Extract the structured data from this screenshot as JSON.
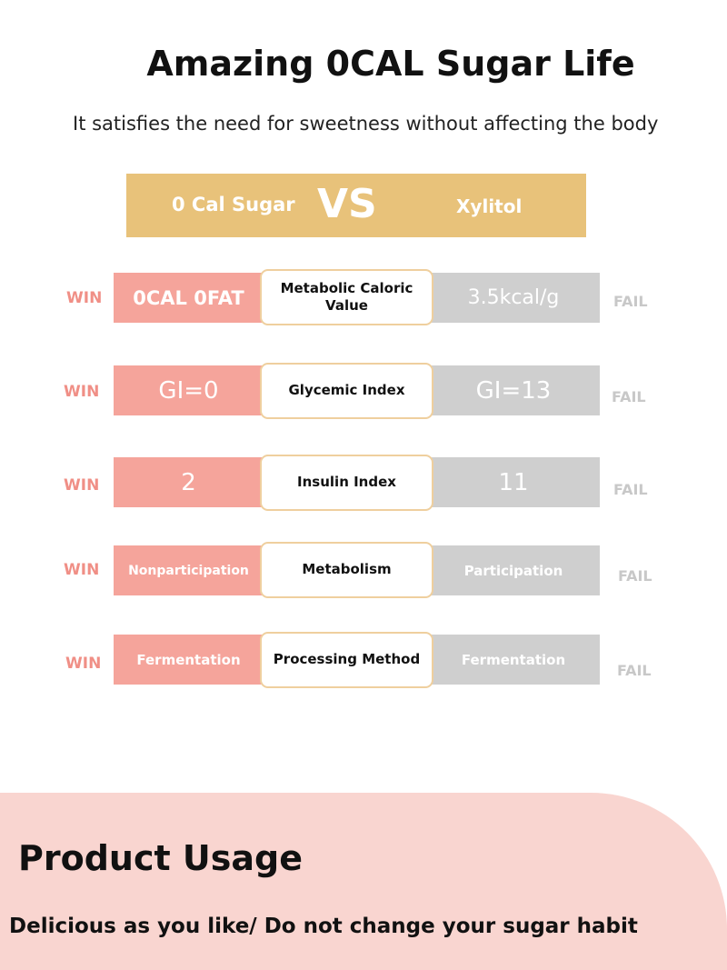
{
  "header": {
    "title": "Amazing 0CAL Sugar Life",
    "subtitle": "It satisfies the need for sweetness without affecting the body"
  },
  "banner": {
    "left": "0 Cal Sugar",
    "center": "VS",
    "right": "Xylitol"
  },
  "comparison": [
    {
      "win": "WIN",
      "left": "0CAL 0FAT",
      "label": "Metabolic Caloric Value",
      "right": "3.5kcal/g",
      "fail": "FAIL"
    },
    {
      "win": "WIN",
      "left": "GI=0",
      "label": "Glycemic Index",
      "right": "GI=13",
      "fail": "FAIL"
    },
    {
      "win": "WIN",
      "left": "2",
      "label": "Insulin Index",
      "right": "11",
      "fail": "FAIL"
    },
    {
      "win": "WIN",
      "left": "Nonparticipation",
      "label": "Metabolism",
      "right": "Participation",
      "fail": "FAIL"
    },
    {
      "win": "WIN",
      "left": "Fermentation",
      "label": "Processing Method",
      "right": "Fermentation",
      "fail": "FAIL"
    }
  ],
  "usage": {
    "title": "Product Usage",
    "text": "Delicious as you like/  Do not change your sugar habit"
  },
  "colors": {
    "banner": "#e8c27a",
    "win_box": "#f5a49b",
    "fail_box": "#cfcfcf",
    "win_text": "#f08f86",
    "fail_text": "#c8c8c8",
    "panel": "#f9d5d0"
  }
}
